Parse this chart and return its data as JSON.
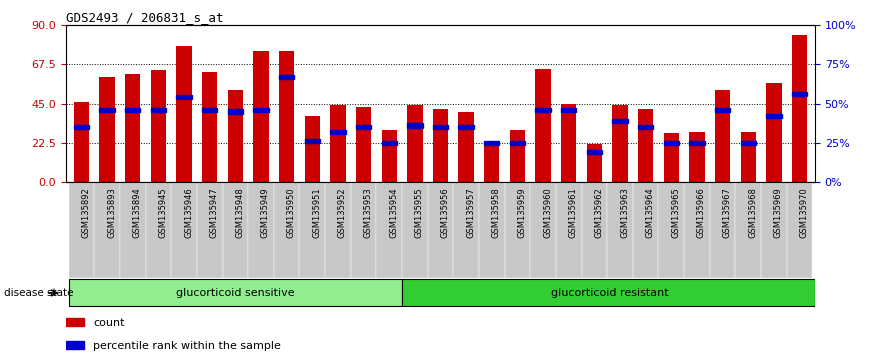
{
  "title": "GDS2493 / 206831_s_at",
  "samples": [
    "GSM135892",
    "GSM135893",
    "GSM135894",
    "GSM135945",
    "GSM135946",
    "GSM135947",
    "GSM135948",
    "GSM135949",
    "GSM135950",
    "GSM135951",
    "GSM135952",
    "GSM135953",
    "GSM135954",
    "GSM135955",
    "GSM135956",
    "GSM135957",
    "GSM135958",
    "GSM135959",
    "GSM135960",
    "GSM135961",
    "GSM135962",
    "GSM135963",
    "GSM135964",
    "GSM135965",
    "GSM135966",
    "GSM135967",
    "GSM135968",
    "GSM135969",
    "GSM135970"
  ],
  "counts": [
    46,
    60,
    62,
    64,
    78,
    63,
    53,
    75,
    75,
    38,
    44,
    43,
    30,
    44,
    42,
    40,
    22,
    30,
    65,
    45,
    22,
    44,
    42,
    28,
    29,
    53,
    29,
    57,
    84
  ],
  "percentiles": [
    35,
    46,
    46,
    46,
    54,
    46,
    45,
    46,
    67,
    26,
    32,
    35,
    25,
    36,
    35,
    35,
    25,
    25,
    46,
    46,
    19,
    39,
    35,
    25,
    25,
    46,
    25,
    42,
    56
  ],
  "group1_count": 13,
  "group2_count": 16,
  "group1_label": "glucorticoid sensitive",
  "group2_label": "glucorticoid resistant",
  "bar_color": "#CC0000",
  "marker_color": "#0000CC",
  "yticks_left": [
    0,
    22.5,
    45,
    67.5,
    90
  ],
  "yticks_right": [
    0,
    25,
    50,
    75,
    100
  ],
  "ylim_left": 90,
  "ylim_right": 100,
  "group1_color": "#90EE90",
  "group2_color": "#32CD32",
  "legend_count_label": "count",
  "legend_pct_label": "percentile rank within the sample",
  "disease_state_label": "disease state",
  "tick_bg_color": "#C8C8C8"
}
